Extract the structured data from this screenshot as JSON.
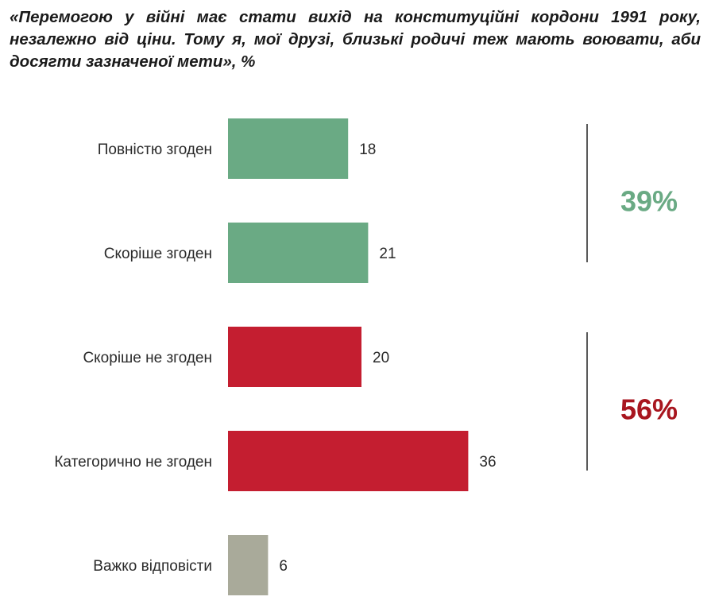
{
  "chart_data": {
    "type": "bar",
    "orientation": "horizontal",
    "title": "«Перемогою у війні має стати вихід на конституційні кордони 1991 року, незалежно від ціни. Тому я, мої друзі, близькі родичі теж мають воювати, аби досягти зазначеної мети», %",
    "categories": [
      "Повністю згоден",
      "Скоріше згоден",
      "Скоріше не згоден",
      "Категорично не згоден",
      "Важко відповісти"
    ],
    "values": [
      18,
      21,
      20,
      36,
      6
    ],
    "bar_colors": [
      "#6aaa84",
      "#6aaa84",
      "#c41e30",
      "#c41e30",
      "#a9aa9a"
    ],
    "groups": [
      {
        "label": "39%",
        "color": "#6aaa84",
        "from": 0,
        "to": 1
      },
      {
        "label": "56%",
        "color": "#a8161f",
        "from": 2,
        "to": 3
      }
    ]
  }
}
